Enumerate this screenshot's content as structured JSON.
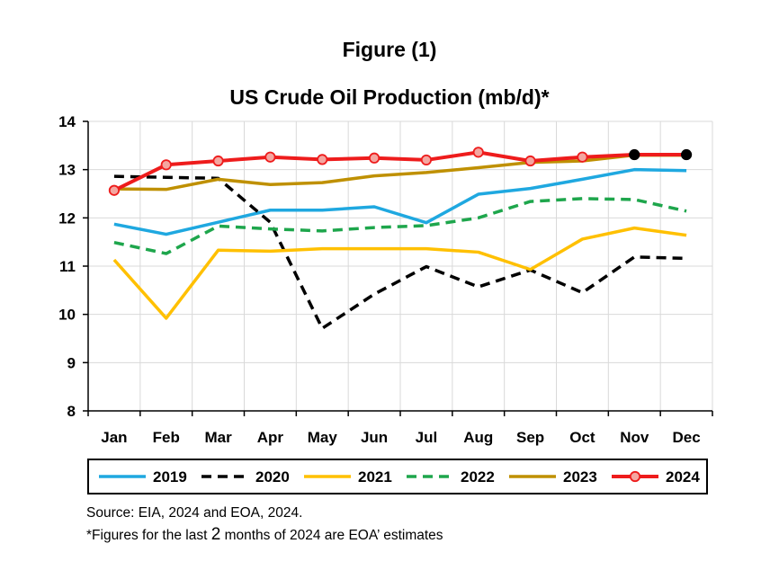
{
  "figure_label": "Figure (1)",
  "source_text": "Source: EIA, 2024 and EOA, 2024.",
  "note": {
    "prefix": "*Figures for the last ",
    "number": "2",
    "suffix": " months of 2024 are EOA’ estimates"
  },
  "chart_data": {
    "type": "line",
    "title": "US Crude Oil Production (mb/d)*",
    "xlabel": "",
    "ylabel": "",
    "categories": [
      "Jan",
      "Feb",
      "Mar",
      "Apr",
      "May",
      "Jun",
      "Jul",
      "Aug",
      "Sep",
      "Oct",
      "Nov",
      "Dec"
    ],
    "ylim": [
      8,
      14
    ],
    "yticks": [
      8,
      9,
      10,
      11,
      12,
      13,
      14
    ],
    "grid": true,
    "legend_position": "bottom",
    "series": [
      {
        "name": "2019",
        "color": "#1fa8e0",
        "style": "solid",
        "values": [
          11.87,
          11.66,
          11.91,
          12.16,
          12.16,
          12.23,
          11.9,
          12.49,
          12.61,
          12.8,
          13.0,
          12.98
        ]
      },
      {
        "name": "2020",
        "color": "#000000",
        "style": "dashed",
        "values": [
          12.86,
          12.84,
          12.82,
          11.91,
          9.71,
          10.42,
          10.99,
          10.57,
          10.92,
          10.45,
          11.19,
          11.16
        ]
      },
      {
        "name": "2021",
        "color": "#ffc000",
        "style": "solid",
        "values": [
          11.13,
          9.92,
          11.33,
          11.31,
          11.36,
          11.36,
          11.36,
          11.29,
          10.93,
          11.56,
          11.79,
          11.64
        ]
      },
      {
        "name": "2022",
        "color": "#1ea64c",
        "style": "dashed",
        "values": [
          11.49,
          11.26,
          11.83,
          11.77,
          11.73,
          11.8,
          11.84,
          12.0,
          12.34,
          12.4,
          12.38,
          12.14
        ]
      },
      {
        "name": "2023",
        "color": "#bf9000",
        "style": "solid",
        "values": [
          12.6,
          12.59,
          12.8,
          12.69,
          12.73,
          12.87,
          12.94,
          13.04,
          13.15,
          13.18,
          13.3,
          13.3
        ]
      },
      {
        "name": "2024",
        "color": "#ee1c1c",
        "style": "markers",
        "values": [
          12.57,
          13.1,
          13.18,
          13.26,
          13.21,
          13.24,
          13.2,
          13.36,
          13.18,
          13.26,
          13.31,
          13.31
        ],
        "estimates_from_index": 10
      }
    ]
  }
}
